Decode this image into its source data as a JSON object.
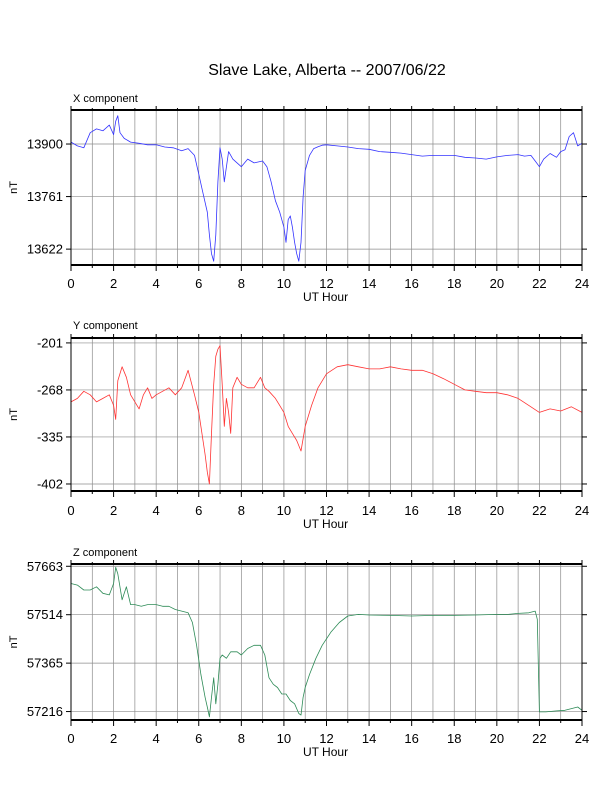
{
  "title": "Slave Lake, Alberta -- 2007/06/22",
  "chart_data": [
    {
      "type": "line",
      "subtitle": "X component",
      "xlabel": "UT Hour",
      "ylabel": "nT",
      "xlim": [
        0,
        24
      ],
      "ylim": [
        13580,
        13990
      ],
      "xticks": [
        0,
        2,
        4,
        6,
        8,
        10,
        12,
        14,
        16,
        18,
        20,
        22,
        24
      ],
      "yticks": [
        13622,
        13761,
        13900
      ],
      "grid": true,
      "color": "#3333ff",
      "series": [
        {
          "x": [
            0,
            0.3,
            0.6,
            0.9,
            1.2,
            1.5,
            1.8,
            2.0,
            2.1,
            2.2,
            2.3,
            2.5,
            2.8,
            3.2,
            3.6,
            4.0,
            4.4,
            4.8,
            5.2,
            5.5,
            5.8,
            6.0,
            6.2,
            6.4,
            6.5,
            6.6,
            6.7,
            6.8,
            6.9,
            7.0,
            7.1,
            7.2,
            7.4,
            7.6,
            7.8,
            8.0,
            8.3,
            8.6,
            9.0,
            9.2,
            9.4,
            9.6,
            9.8,
            10.0,
            10.1,
            10.2,
            10.3,
            10.4,
            10.5,
            10.6,
            10.7,
            10.8,
            10.9,
            11.0,
            11.2,
            11.4,
            11.6,
            11.8,
            12.0,
            12.5,
            13.0,
            13.5,
            14.0,
            14.5,
            15.0,
            15.5,
            16.0,
            16.5,
            17.0,
            17.5,
            18.0,
            18.5,
            19.0,
            19.5,
            20.0,
            20.5,
            21.0,
            21.3,
            21.6,
            21.8,
            22.0,
            22.2,
            22.5,
            22.8,
            23.0,
            23.2,
            23.4,
            23.6,
            23.8,
            24.0
          ],
          "y": [
            13905,
            13895,
            13890,
            13930,
            13940,
            13935,
            13950,
            13925,
            13960,
            13975,
            13930,
            13915,
            13905,
            13902,
            13898,
            13898,
            13892,
            13890,
            13882,
            13888,
            13870,
            13820,
            13770,
            13720,
            13660,
            13610,
            13590,
            13660,
            13800,
            13890,
            13860,
            13800,
            13880,
            13860,
            13850,
            13840,
            13860,
            13850,
            13855,
            13840,
            13800,
            13750,
            13720,
            13680,
            13640,
            13700,
            13710,
            13680,
            13640,
            13610,
            13590,
            13640,
            13760,
            13830,
            13870,
            13888,
            13893,
            13897,
            13898,
            13895,
            13892,
            13888,
            13886,
            13880,
            13878,
            13876,
            13872,
            13868,
            13870,
            13870,
            13870,
            13865,
            13863,
            13860,
            13866,
            13870,
            13872,
            13868,
            13870,
            13855,
            13840,
            13860,
            13875,
            13865,
            13880,
            13885,
            13920,
            13930,
            13895,
            13902
          ]
        }
      ]
    },
    {
      "type": "line",
      "subtitle": "Y component",
      "xlabel": "UT Hour",
      "ylabel": "nT",
      "xlim": [
        0,
        24
      ],
      "ylim": [
        -412,
        -194
      ],
      "xticks": [
        0,
        2,
        4,
        6,
        8,
        10,
        12,
        14,
        16,
        18,
        20,
        22,
        24
      ],
      "yticks": [
        -201,
        -268,
        -335,
        -402
      ],
      "grid": true,
      "color": "#ff3333",
      "series": [
        {
          "x": [
            0,
            0.3,
            0.6,
            0.9,
            1.2,
            1.5,
            1.8,
            2.0,
            2.1,
            2.2,
            2.4,
            2.6,
            2.8,
            3.0,
            3.2,
            3.4,
            3.6,
            3.8,
            4.0,
            4.3,
            4.6,
            4.9,
            5.2,
            5.5,
            5.8,
            6.0,
            6.1,
            6.2,
            6.3,
            6.4,
            6.5,
            6.6,
            6.7,
            6.8,
            6.9,
            7.0,
            7.1,
            7.2,
            7.3,
            7.4,
            7.5,
            7.6,
            7.8,
            8.0,
            8.3,
            8.6,
            8.9,
            9.1,
            9.3,
            9.6,
            9.8,
            10.0,
            10.2,
            10.4,
            10.6,
            10.8,
            11.0,
            11.3,
            11.6,
            12.0,
            12.5,
            13.0,
            13.5,
            14.0,
            14.5,
            15.0,
            15.5,
            16.0,
            16.5,
            17.0,
            17.5,
            18.0,
            18.5,
            19.0,
            19.5,
            20.0,
            20.5,
            21.0,
            21.5,
            22.0,
            22.5,
            23.0,
            23.5,
            24.0
          ],
          "y": [
            -285,
            -280,
            -270,
            -275,
            -285,
            -280,
            -275,
            -290,
            -310,
            -255,
            -235,
            -250,
            -275,
            -285,
            -295,
            -275,
            -265,
            -280,
            -275,
            -270,
            -265,
            -275,
            -265,
            -240,
            -275,
            -300,
            -320,
            -340,
            -360,
            -385,
            -402,
            -330,
            -260,
            -220,
            -210,
            -205,
            -260,
            -320,
            -280,
            -300,
            -330,
            -265,
            -250,
            -260,
            -265,
            -265,
            -250,
            -265,
            -270,
            -280,
            -290,
            -300,
            -320,
            -330,
            -340,
            -355,
            -320,
            -290,
            -265,
            -245,
            -235,
            -232,
            -235,
            -238,
            -238,
            -235,
            -238,
            -240,
            -240,
            -245,
            -252,
            -260,
            -268,
            -270,
            -272,
            -272,
            -275,
            -280,
            -290,
            -300,
            -295,
            -298,
            -292,
            -300
          ]
        }
      ]
    },
    {
      "type": "line",
      "subtitle": "Z component",
      "xlabel": "UT Hour",
      "ylabel": "nT",
      "xlim": [
        0,
        24
      ],
      "ylim": [
        57190,
        57670
      ],
      "xticks": [
        0,
        2,
        4,
        6,
        8,
        10,
        12,
        14,
        16,
        18,
        20,
        22,
        24
      ],
      "yticks": [
        57216,
        57365,
        57514,
        57663
      ],
      "grid": true,
      "color": "#2e8b57",
      "series": [
        {
          "x": [
            0,
            0.3,
            0.6,
            0.9,
            1.2,
            1.5,
            1.8,
            2.0,
            2.1,
            2.2,
            2.4,
            2.6,
            2.8,
            3.0,
            3.3,
            3.6,
            4.0,
            4.3,
            4.6,
            4.9,
            5.2,
            5.5,
            5.7,
            5.9,
            6.1,
            6.3,
            6.4,
            6.5,
            6.6,
            6.7,
            6.8,
            6.9,
            7.0,
            7.1,
            7.3,
            7.5,
            7.8,
            8.0,
            8.3,
            8.6,
            8.9,
            9.1,
            9.3,
            9.5,
            9.7,
            9.9,
            10.1,
            10.3,
            10.5,
            10.7,
            10.8,
            10.9,
            11.0,
            11.2,
            11.5,
            11.8,
            12.2,
            12.6,
            13.0,
            13.5,
            14.0,
            15.0,
            16.0,
            17.0,
            18.0,
            19.0,
            20.0,
            20.5,
            21.0,
            21.5,
            21.8,
            21.9,
            22.0,
            22.3,
            22.8,
            23.2,
            23.5,
            23.8,
            24.0
          ],
          "y": [
            57610,
            57605,
            57590,
            57590,
            57600,
            57580,
            57575,
            57610,
            57660,
            57640,
            57560,
            57600,
            57545,
            57545,
            57540,
            57545,
            57545,
            57540,
            57540,
            57530,
            57525,
            57520,
            57490,
            57420,
            57330,
            57260,
            57230,
            57200,
            57260,
            57320,
            57240,
            57300,
            57380,
            57390,
            57380,
            57400,
            57400,
            57390,
            57410,
            57420,
            57420,
            57390,
            57320,
            57300,
            57290,
            57270,
            57270,
            57250,
            57240,
            57210,
            57205,
            57260,
            57290,
            57330,
            57380,
            57420,
            57460,
            57490,
            57510,
            57515,
            57513,
            57512,
            57510,
            57512,
            57512,
            57513,
            57515,
            57515,
            57518,
            57520,
            57525,
            57500,
            57215,
            57215,
            57218,
            57220,
            57225,
            57230,
            57220
          ]
        }
      ]
    }
  ]
}
